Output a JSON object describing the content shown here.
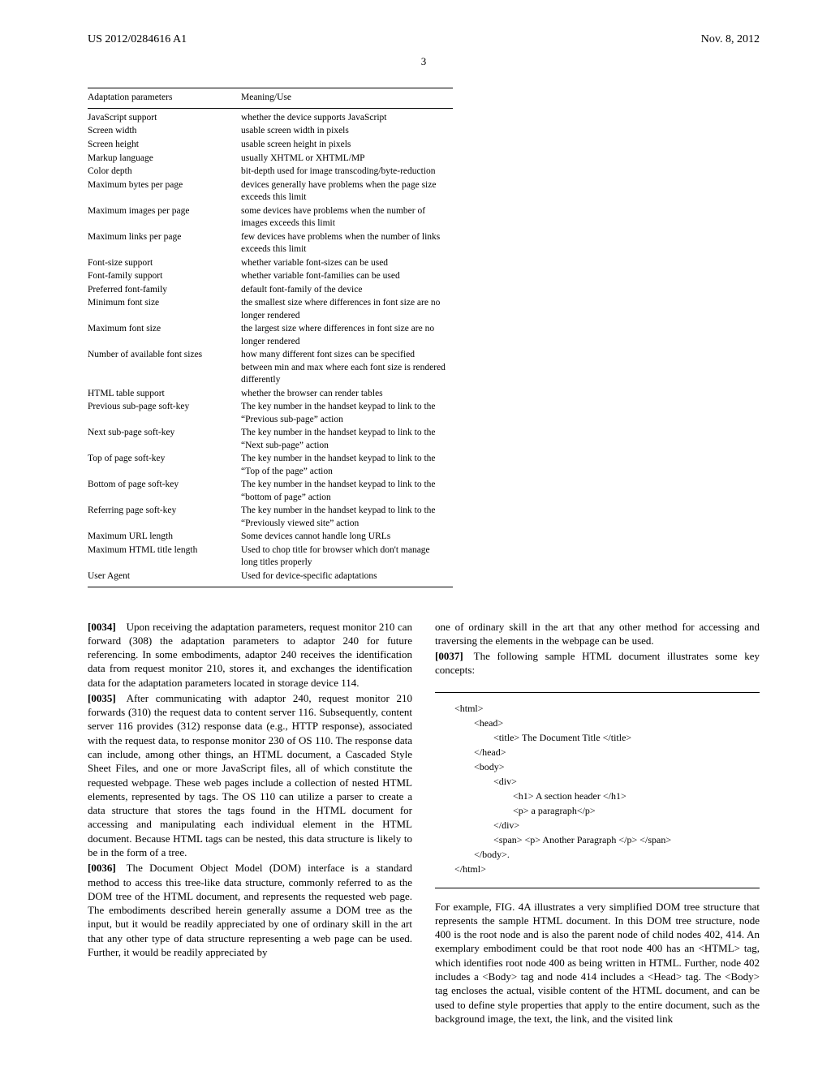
{
  "header": {
    "left": "US 2012/0284616 A1",
    "right": "Nov. 8, 2012"
  },
  "pagenum": "3",
  "table": {
    "headers": [
      "Adaptation parameters",
      "Meaning/Use"
    ],
    "rows": [
      [
        "JavaScript support",
        "whether the device supports JavaScript"
      ],
      [
        "Screen width",
        "usable screen width in pixels"
      ],
      [
        "Screen height",
        "usable screen height in pixels"
      ],
      [
        "Markup language",
        "usually XHTML or XHTML/MP"
      ],
      [
        "Color depth",
        "bit-depth used for image transcoding/byte-reduction"
      ],
      [
        "Maximum bytes per page",
        "devices generally have problems when the page size exceeds this limit"
      ],
      [
        "Maximum images per page",
        "some devices have problems when the number of images exceeds this limit"
      ],
      [
        "Maximum links per page",
        "few devices have problems when the number of links exceeds this limit"
      ],
      [
        "Font-size support",
        "whether variable font-sizes can be used"
      ],
      [
        "Font-family support",
        "whether variable font-families can be used"
      ],
      [
        "Preferred font-family",
        "default font-family of the device"
      ],
      [
        "Minimum font size",
        "the smallest size where differences in font size are no longer rendered"
      ],
      [
        "Maximum font size",
        "the largest size where differences in font size are no longer rendered"
      ],
      [
        "Number of available font sizes",
        "how many different font sizes can be specified between min and max where each font size is rendered differently"
      ],
      [
        "HTML table support",
        "whether the browser can render tables"
      ],
      [
        "Previous sub-page soft-key",
        "The key number in the handset keypad to link to the “Previous sub-page” action"
      ],
      [
        "Next sub-page soft-key",
        "The key number in the handset keypad to link to the “Next sub-page” action"
      ],
      [
        "Top of page soft-key",
        "The key number in the handset keypad to link to the “Top of the page” action"
      ],
      [
        "Bottom of page soft-key",
        "The key number in the handset keypad to link to the “bottom of page” action"
      ],
      [
        "Referring page soft-key",
        "The key number in the handset keypad to link to the “Previously viewed site” action"
      ],
      [
        "Maximum URL length",
        "Some devices cannot handle long URLs"
      ],
      [
        "Maximum HTML title length",
        "Used to chop title for browser which don't manage long titles properly"
      ],
      [
        "User Agent",
        "Used for device-specific adaptations"
      ]
    ]
  },
  "paragraphs": {
    "p0034_ref": "[0034]",
    "p0034": " Upon receiving the adaptation parameters, request monitor 210 can forward (308) the adaptation parameters to adaptor 240 for future referencing. In some embodiments, adaptor 240 receives the identification data from request monitor 210, stores it, and exchanges the identification data for the adaptation parameters located in storage device 114.",
    "p0035_ref": "[0035]",
    "p0035": " After communicating with adaptor 240, request monitor 210 forwards (310) the request data to content server 116. Subsequently, content server 116 provides (312) response data (e.g., HTTP response), associated with the request data, to response monitor 230 of OS 110. The response data can include, among other things, an HTML document, a Cascaded Style Sheet Files, and one or more JavaScript files, all of which constitute the requested webpage. These web pages include a collection of nested HTML elements, represented by tags. The OS 110 can utilize a parser to create a data structure that stores the tags found in the HTML document for accessing and manipulating each individual element in the HTML document. Because HTML tags can be nested, this data structure is likely to be in the form of a tree.",
    "p0036_ref": "[0036]",
    "p0036": " The Document Object Model (DOM) interface is a standard method to access this tree-like data structure, commonly referred to as the DOM tree of the HTML document, and represents the requested web page. The embodiments described herein generally assume a DOM tree as the input, but it would be readily appreciated by one of ordinary skill in the art that any other type of data structure representing a web page can be used. Further, it would be readily appreciated by",
    "p_right1": "one of ordinary skill in the art that any other method for accessing and traversing the elements in the webpage can be used.",
    "p0037_ref": "[0037]",
    "p0037": " The following sample HTML document illustrates some key concepts:",
    "code": {
      "l1": "<html>",
      "l2": "<head>",
      "l3": "<title> The Document Title </title>",
      "l4": "</head>",
      "l5": "<body>",
      "l6": "<div>",
      "l7": "<h1> A section header </h1>",
      "l8": "<p> a paragraph</p>",
      "l9": "</div>",
      "l10": "<span> <p> Another Paragraph </p> </span>",
      "l11": "</body>.",
      "l12": "</html>"
    },
    "p_right3": "For example, FIG. 4A illustrates a very simplified DOM tree structure that represents the sample HTML document. In this DOM tree structure, node 400 is the root node and is also the parent node of child nodes 402, 414. An exemplary embodiment could be that root node 400 has an <HTML> tag, which identifies root node 400 as being written in HTML. Further, node 402 includes a <Body> tag and node 414 includes a <Head> tag. The <Body> tag encloses the actual, visible content of the HTML document, and can be used to define style properties that apply to the entire document, such as the background image, the text, the link, and the visited link"
  }
}
